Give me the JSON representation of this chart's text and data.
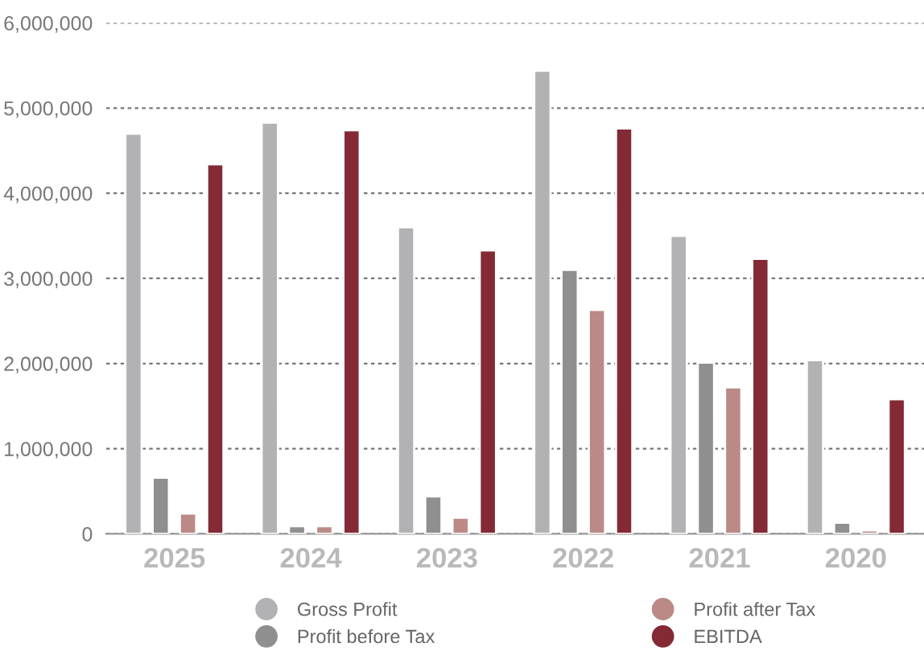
{
  "chart_data": {
    "type": "bar",
    "categories": [
      "2025",
      "2024",
      "2023",
      "2022",
      "2021",
      "2020"
    ],
    "series": [
      {
        "name": "Gross Profit",
        "color": "#b2b2b4",
        "values": [
          4700000,
          4830000,
          3600000,
          5440000,
          3500000,
          2040000
        ]
      },
      {
        "name": "Profit before Tax",
        "color": "#8f8f8f",
        "values": [
          660000,
          90000,
          440000,
          3100000,
          2010000,
          130000
        ]
      },
      {
        "name": "Profit after Tax",
        "color": "#bb8a86",
        "values": [
          240000,
          90000,
          190000,
          2630000,
          1720000,
          40000
        ]
      },
      {
        "name": "EBITDA",
        "color": "#832a35",
        "values": [
          4340000,
          4740000,
          3330000,
          4760000,
          3230000,
          1580000
        ]
      }
    ],
    "ylim": [
      0,
      6000000
    ],
    "yticks": [
      {
        "value": 0,
        "label": "0"
      },
      {
        "value": 1000000,
        "label": "1,000,000"
      },
      {
        "value": 2000000,
        "label": "2,000,000"
      },
      {
        "value": 3000000,
        "label": "3,000,000"
      },
      {
        "value": 4000000,
        "label": "4,000,000"
      },
      {
        "value": 5000000,
        "label": "5,000,000"
      },
      {
        "value": 6000000,
        "label": "6,000,000"
      }
    ],
    "grid": "y",
    "legend": "bottom"
  }
}
